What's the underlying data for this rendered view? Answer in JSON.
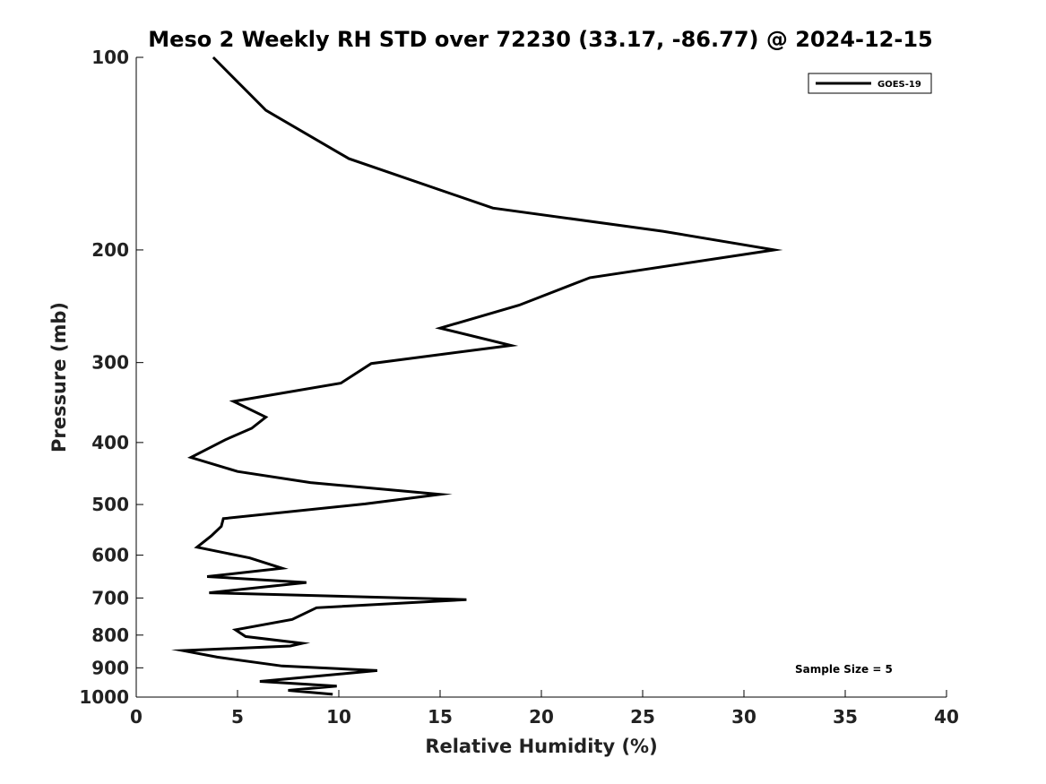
{
  "chart_data": {
    "type": "line",
    "title": "Meso 2 Weekly RH STD over 72230 (33.17, -86.77) @ 2024-12-15",
    "xlabel": "Relative Humidity (%)",
    "ylabel": "Pressure (mb)",
    "xlim": [
      0,
      40
    ],
    "ylim": [
      100,
      1000
    ],
    "y_scale": "log",
    "y_reversed": true,
    "grid": false,
    "x_ticks": [
      0,
      5,
      10,
      15,
      20,
      25,
      30,
      35,
      40
    ],
    "x_tick_labels": [
      "0",
      "5",
      "10",
      "15",
      "20",
      "25",
      "30",
      "35",
      "40"
    ],
    "y_ticks": [
      100,
      200,
      300,
      400,
      500,
      600,
      700,
      800,
      900,
      1000
    ],
    "y_tick_labels": [
      "100",
      "200",
      "300",
      "400",
      "500",
      "600",
      "700",
      "800",
      "900",
      "1000"
    ],
    "legend": {
      "placement": "top-right",
      "entries": [
        "GOES-19"
      ]
    },
    "annotation": "Sample Size = 5",
    "series": [
      {
        "name": "GOES-19",
        "color": "#000000",
        "points": [
          [
            3.8,
            100
          ],
          [
            6.4,
            121
          ],
          [
            10.5,
            144
          ],
          [
            17.6,
            172
          ],
          [
            26.0,
            187
          ],
          [
            31.5,
            200
          ],
          [
            22.4,
            221
          ],
          [
            18.9,
            244
          ],
          [
            15.0,
            265
          ],
          [
            18.5,
            282
          ],
          [
            11.6,
            301
          ],
          [
            10.1,
            323
          ],
          [
            4.8,
            345
          ],
          [
            6.4,
            365
          ],
          [
            5.7,
            380
          ],
          [
            4.4,
            396
          ],
          [
            2.7,
            422
          ],
          [
            5.0,
            444
          ],
          [
            8.6,
            462
          ],
          [
            15.0,
            482
          ],
          [
            11.3,
            499
          ],
          [
            4.3,
            526
          ],
          [
            4.2,
            541
          ],
          [
            3.7,
            560
          ],
          [
            3.0,
            583
          ],
          [
            5.6,
            606
          ],
          [
            7.2,
            629
          ],
          [
            3.5,
            648
          ],
          [
            8.4,
            662
          ],
          [
            3.6,
            687
          ],
          [
            16.3,
            704
          ],
          [
            8.9,
            725
          ],
          [
            7.7,
            756
          ],
          [
            4.9,
            785
          ],
          [
            5.4,
            804
          ],
          [
            8.2,
            824
          ],
          [
            7.6,
            832
          ],
          [
            2.3,
            846
          ],
          [
            4.0,
            866
          ],
          [
            7.2,
            894
          ],
          [
            11.9,
            909
          ],
          [
            6.1,
            945
          ],
          [
            9.9,
            961
          ],
          [
            7.5,
            976
          ],
          [
            9.7,
            990
          ]
        ]
      }
    ]
  }
}
